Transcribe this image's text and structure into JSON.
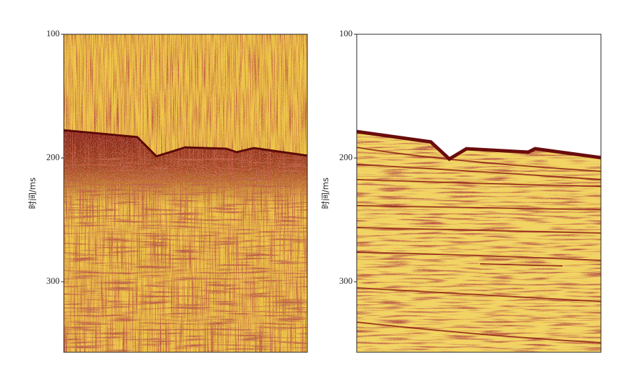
{
  "chart_data": [
    {
      "type": "seismic",
      "y_label": "时间/ms",
      "ylim": [
        100,
        357
      ],
      "yticks": [
        100,
        200,
        300
      ],
      "y_inverted": true
    },
    {
      "type": "seismic",
      "y_label": "时间/ms",
      "ylim": [
        100,
        357
      ],
      "yticks": [
        100,
        200,
        300
      ],
      "y_inverted": true
    }
  ]
}
